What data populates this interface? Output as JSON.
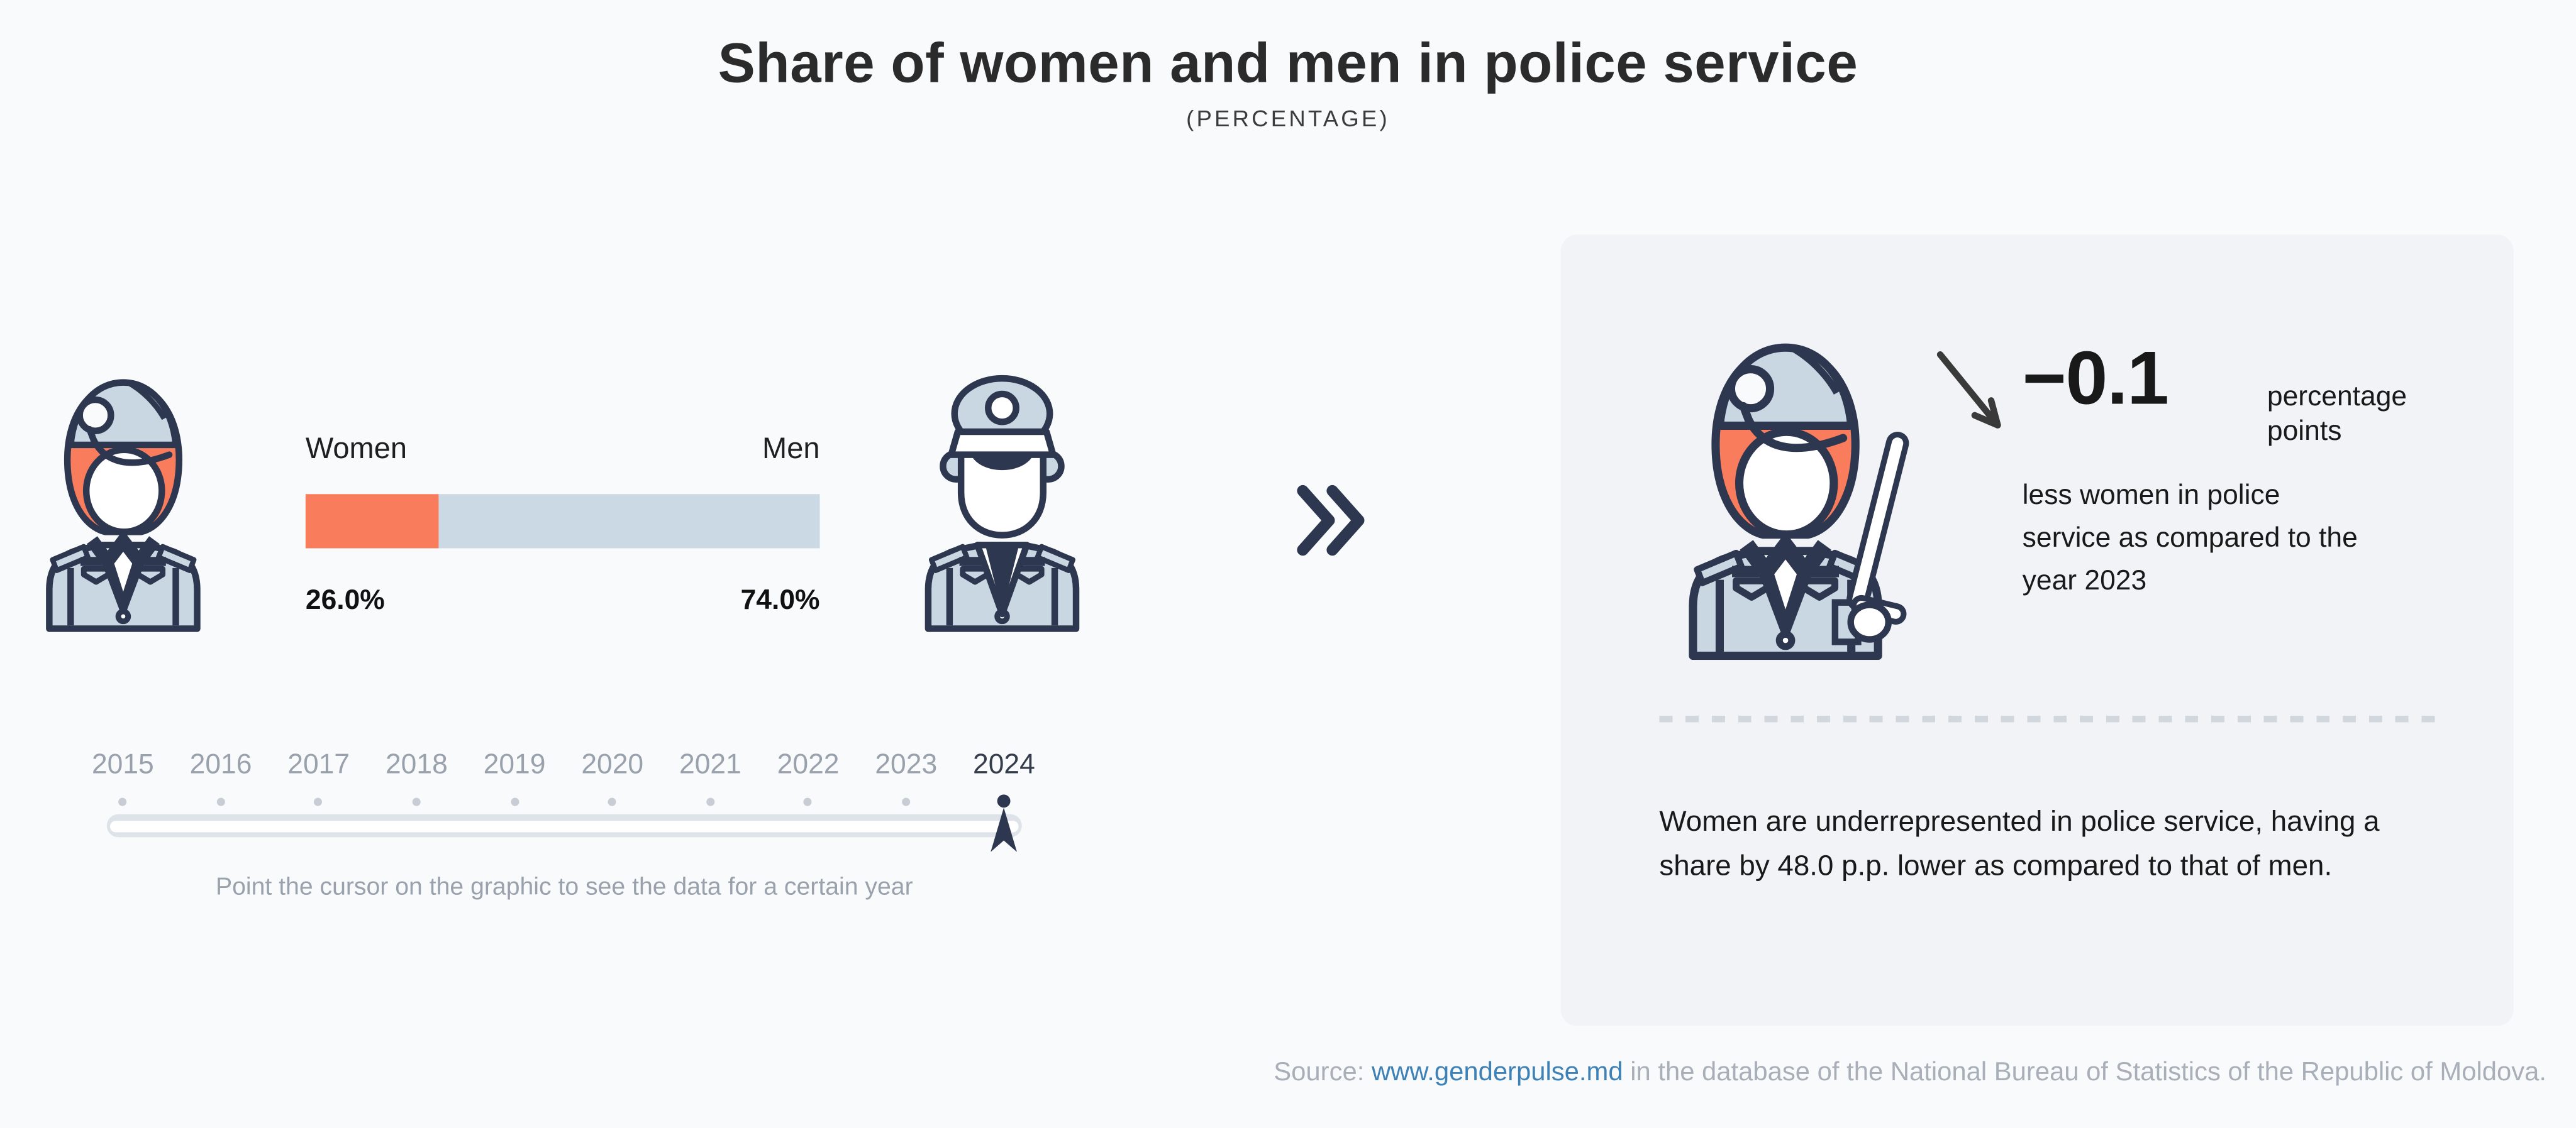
{
  "title": "Share of women and men in police service",
  "subtitle": "(PERCENTAGE)",
  "chart_data": {
    "type": "bar",
    "title": "Share of women and men in police service",
    "subtitle": "(PERCENTAGE)",
    "categories": [
      "Women",
      "Men"
    ],
    "values": [
      26.0,
      74.0
    ],
    "value_labels": [
      "26.0%",
      "74.0%"
    ],
    "unit": "percent",
    "stacked": true,
    "colors": {
      "women": "#F97C5D",
      "men": "#CBD9E5"
    },
    "years": [
      "2015",
      "2016",
      "2017",
      "2018",
      "2019",
      "2020",
      "2021",
      "2022",
      "2023",
      "2024"
    ],
    "selected_year": "2024",
    "change_pp_vs_previous_year": -0.1,
    "gap_pp_women_vs_men": 48.0
  },
  "bar": {
    "women_label": "Women",
    "men_label": "Men",
    "women_value": "26.0%",
    "men_value": "74.0%"
  },
  "timeline": {
    "years": [
      "2015",
      "2016",
      "2017",
      "2018",
      "2019",
      "2020",
      "2021",
      "2022",
      "2023",
      "2024"
    ],
    "selected": "2024",
    "hint": "Point the cursor on the graphic to see the data for a certain year"
  },
  "panel": {
    "delta_value": "−0.1",
    "delta_unit": "percentage points",
    "delta_desc": "less women in police service as compared to the year 2023",
    "summary": "Women are underrepresented in police service, having a share by 48.0 p.p. lower as compared to that of men."
  },
  "source": {
    "prefix": "Source:",
    "link": "www.genderpulse.md",
    "suffix": "in the database of the National Bureau of Statistics of the Republic of Moldova."
  }
}
